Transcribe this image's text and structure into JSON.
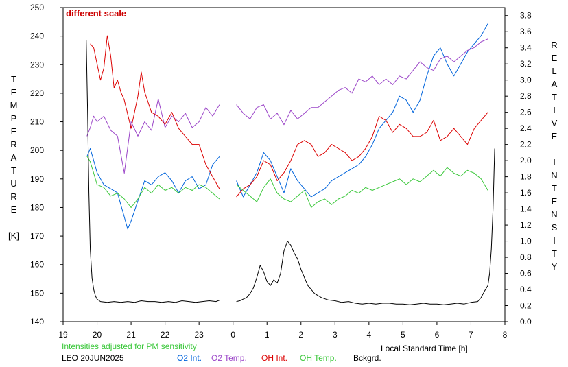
{
  "chart_data": {
    "type": "line",
    "annotation": "different scale",
    "footnote": "Intensities adjusted for PM sensitivity",
    "station": "LEO 20JUN2025",
    "xlabel": "Local Standard Time [h]",
    "ylabel_left": [
      "T",
      "E",
      "M",
      "P",
      "E",
      "R",
      "A",
      "T",
      "U",
      "R",
      "E",
      "",
      "[K]"
    ],
    "ylabel_right": [
      "R",
      "E",
      "L",
      "A",
      "T",
      "I",
      "V",
      "E",
      "",
      "I",
      "N",
      "T",
      "E",
      "N",
      "S",
      "I",
      "T",
      "Y"
    ],
    "x_axis": {
      "range": [
        19,
        32
      ],
      "tick_values": [
        19,
        20,
        21,
        22,
        23,
        24,
        25,
        26,
        27,
        28,
        29,
        30,
        31,
        32
      ],
      "tick_labels": [
        "19",
        "20",
        "21",
        "22",
        "23",
        "0",
        "1",
        "2",
        "3",
        "4",
        "5",
        "6",
        "7",
        "8"
      ]
    },
    "y_left": {
      "range": [
        140,
        250
      ],
      "tick_values": [
        140,
        150,
        160,
        170,
        180,
        190,
        200,
        210,
        220,
        230,
        240,
        250
      ],
      "tick_labels": [
        "140",
        "150",
        "160",
        "170",
        "180",
        "190",
        "200",
        "210",
        "220",
        "230",
        "240",
        "250"
      ]
    },
    "y_right": {
      "range": [
        0.0,
        3.9
      ],
      "tick_values": [
        0.0,
        0.2,
        0.4,
        0.6,
        0.8,
        1.0,
        1.2,
        1.4,
        1.6,
        1.8,
        2.0,
        2.2,
        2.4,
        2.6,
        2.8,
        3.0,
        3.2,
        3.4,
        3.6,
        3.8
      ],
      "tick_labels": [
        "0.0",
        "0.2",
        "0.4",
        "0.6",
        "0.8",
        "1.0",
        "1.2",
        "1.4",
        "1.6",
        "1.8",
        "2.0",
        "2.2",
        "2.4",
        "2.6",
        "2.8",
        "3.0",
        "3.2",
        "3.4",
        "3.6",
        "3.8"
      ]
    },
    "series": [
      {
        "name": "O2 Int.",
        "axis": "right",
        "color": "#0064dc",
        "x": [
          19.7,
          19.8,
          19.9,
          20.0,
          20.2,
          20.4,
          20.6,
          20.7,
          20.8,
          20.9,
          21.0,
          21.2,
          21.4,
          21.6,
          21.8,
          22.0,
          22.2,
          22.4,
          22.6,
          22.8,
          23.0,
          23.2,
          23.4,
          23.6
        ],
        "y": [
          2.05,
          2.15,
          2.0,
          1.85,
          1.7,
          1.65,
          1.6,
          1.45,
          1.3,
          1.15,
          1.25,
          1.5,
          1.75,
          1.7,
          1.8,
          1.85,
          1.75,
          1.6,
          1.75,
          1.8,
          1.65,
          1.7,
          1.95,
          2.05
        ]
      },
      {
        "name": "O2 Int.",
        "axis": "right",
        "color": "#0064dc",
        "x": [
          24.1,
          24.3,
          24.5,
          24.7,
          24.9,
          25.1,
          25.3,
          25.5,
          25.7,
          25.9,
          26.1,
          26.3,
          26.5,
          26.7,
          26.9,
          27.1,
          27.3,
          27.5,
          27.7,
          27.9,
          28.1,
          28.3,
          28.5,
          28.7,
          28.9,
          29.1,
          29.3,
          29.5,
          29.7,
          29.9,
          30.1,
          30.3,
          30.5,
          30.7,
          30.9,
          31.1,
          31.3,
          31.5
        ],
        "y": [
          1.75,
          1.55,
          1.7,
          1.85,
          2.1,
          2.0,
          1.8,
          1.6,
          1.9,
          1.75,
          1.65,
          1.55,
          1.6,
          1.65,
          1.75,
          1.8,
          1.85,
          1.9,
          1.95,
          2.05,
          2.2,
          2.4,
          2.5,
          2.6,
          2.8,
          2.75,
          2.6,
          2.75,
          3.05,
          3.3,
          3.4,
          3.2,
          3.05,
          3.2,
          3.35,
          3.45,
          3.55,
          3.7
        ]
      },
      {
        "name": "O2 Temp.",
        "axis": "left",
        "color": "#9b45c8",
        "x": [
          19.7,
          19.8,
          19.9,
          20.0,
          20.2,
          20.4,
          20.6,
          20.8,
          21.0,
          21.2,
          21.4,
          21.6,
          21.8,
          22.0,
          22.2,
          22.4,
          22.6,
          22.8,
          23.0,
          23.2,
          23.4,
          23.6
        ],
        "y": [
          205,
          208,
          212,
          210,
          212,
          207,
          205,
          192,
          210,
          205,
          210,
          207,
          218,
          208,
          212,
          210,
          213,
          208,
          210,
          215,
          212,
          216
        ]
      },
      {
        "name": "O2 Temp.",
        "axis": "left",
        "color": "#9b45c8",
        "x": [
          24.1,
          24.3,
          24.5,
          24.7,
          24.9,
          25.1,
          25.3,
          25.5,
          25.7,
          25.9,
          26.1,
          26.3,
          26.5,
          26.7,
          26.9,
          27.1,
          27.3,
          27.5,
          27.7,
          27.9,
          28.1,
          28.3,
          28.5,
          28.7,
          28.9,
          29.1,
          29.3,
          29.5,
          29.7,
          29.9,
          30.1,
          30.3,
          30.5,
          30.7,
          30.9,
          31.1,
          31.3,
          31.5
        ],
        "y": [
          216,
          213,
          211,
          215,
          216,
          211,
          213,
          209,
          214,
          211,
          213,
          215,
          215,
          217,
          219,
          221,
          222,
          220,
          225,
          224,
          226,
          223,
          225,
          223,
          226,
          225,
          228,
          231,
          229,
          228,
          232,
          233,
          231,
          233,
          235,
          236,
          238,
          239
        ]
      },
      {
        "name": "OH Int.",
        "axis": "right",
        "color": "#dc0000",
        "x": [
          19.8,
          19.9,
          20.0,
          20.1,
          20.2,
          20.3,
          20.4,
          20.5,
          20.6,
          20.7,
          20.8,
          21.0,
          21.2,
          21.3,
          21.4,
          21.6,
          21.8,
          22.0,
          22.2,
          22.4,
          22.6,
          22.8,
          23.0,
          23.2,
          23.4,
          23.6
        ],
        "y": [
          3.45,
          3.4,
          3.2,
          3.0,
          3.15,
          3.55,
          3.3,
          2.9,
          3.0,
          2.85,
          2.75,
          2.4,
          2.8,
          3.1,
          2.85,
          2.6,
          2.55,
          2.45,
          2.6,
          2.4,
          2.3,
          2.2,
          2.2,
          1.95,
          1.8,
          1.65
        ]
      },
      {
        "name": "OH Int.",
        "axis": "right",
        "color": "#dc0000",
        "x": [
          24.1,
          24.3,
          24.5,
          24.7,
          24.9,
          25.1,
          25.3,
          25.5,
          25.7,
          25.9,
          26.1,
          26.3,
          26.5,
          26.7,
          26.9,
          27.1,
          27.3,
          27.5,
          27.7,
          27.9,
          28.1,
          28.3,
          28.5,
          28.7,
          28.9,
          29.1,
          29.3,
          29.5,
          29.7,
          29.9,
          30.1,
          30.3,
          30.5,
          30.7,
          30.9,
          31.1,
          31.3,
          31.5
        ],
        "y": [
          1.55,
          1.65,
          1.7,
          1.8,
          2.0,
          1.95,
          1.75,
          1.85,
          2.0,
          2.2,
          2.25,
          2.2,
          2.05,
          2.1,
          2.2,
          2.15,
          2.1,
          2.0,
          2.05,
          2.15,
          2.3,
          2.55,
          2.5,
          2.35,
          2.45,
          2.4,
          2.3,
          2.3,
          2.35,
          2.5,
          2.25,
          2.3,
          2.4,
          2.3,
          2.2,
          2.4,
          2.5,
          2.6
        ]
      },
      {
        "name": "OH Temp.",
        "axis": "left",
        "color": "#3cc83c",
        "x": [
          19.7,
          19.8,
          19.9,
          20.0,
          20.2,
          20.4,
          20.6,
          20.8,
          21.0,
          21.2,
          21.4,
          21.6,
          21.8,
          22.0,
          22.2,
          22.4,
          22.6,
          22.8,
          23.0,
          23.2,
          23.4,
          23.6
        ],
        "y": [
          198,
          196,
          192,
          188,
          187,
          184,
          185,
          183,
          180,
          183,
          187,
          185,
          188,
          186,
          187,
          185,
          187,
          186,
          188,
          187,
          185,
          183
        ]
      },
      {
        "name": "OH Temp.",
        "axis": "left",
        "color": "#3cc83c",
        "x": [
          24.1,
          24.3,
          24.5,
          24.7,
          24.9,
          25.1,
          25.3,
          25.5,
          25.7,
          25.9,
          26.1,
          26.3,
          26.5,
          26.7,
          26.9,
          27.1,
          27.3,
          27.5,
          27.7,
          27.9,
          28.1,
          28.3,
          28.5,
          28.7,
          28.9,
          29.1,
          29.3,
          29.5,
          29.7,
          29.9,
          30.1,
          30.3,
          30.5,
          30.7,
          30.9,
          31.1,
          31.3,
          31.5
        ],
        "y": [
          188,
          186,
          184,
          182,
          187,
          190,
          185,
          183,
          182,
          184,
          186,
          180,
          182,
          183,
          181,
          183,
          184,
          186,
          185,
          187,
          186,
          187,
          188,
          189,
          190,
          188,
          190,
          189,
          191,
          193,
          191,
          194,
          192,
          191,
          193,
          192,
          190,
          186
        ]
      },
      {
        "name": "Bckgrd.",
        "axis": "right",
        "color": "#000000",
        "x": [
          19.68,
          19.72,
          19.76,
          19.8,
          19.85,
          19.9,
          19.95,
          20.0,
          20.1,
          20.3,
          20.5,
          20.7,
          20.9,
          21.1,
          21.3,
          21.5,
          21.7,
          21.9,
          22.1,
          22.3,
          22.5,
          22.7,
          22.9,
          23.1,
          23.3,
          23.5,
          23.62
        ],
        "y": [
          3.5,
          2.6,
          1.6,
          0.9,
          0.55,
          0.4,
          0.32,
          0.28,
          0.25,
          0.24,
          0.25,
          0.24,
          0.25,
          0.24,
          0.26,
          0.25,
          0.25,
          0.24,
          0.25,
          0.24,
          0.26,
          0.25,
          0.24,
          0.25,
          0.26,
          0.25,
          0.27
        ]
      },
      {
        "name": "Bckgrd.",
        "axis": "right",
        "color": "#000000",
        "x": [
          24.1,
          24.2,
          24.3,
          24.4,
          24.5,
          24.6,
          24.7,
          24.8,
          24.9,
          25.0,
          25.1,
          25.2,
          25.3,
          25.4,
          25.5,
          25.6,
          25.7,
          25.8,
          25.9,
          26.0,
          26.1,
          26.2,
          26.4,
          26.6,
          26.8,
          27.0,
          27.2,
          27.4,
          27.6,
          27.8,
          28.0,
          28.2,
          28.4,
          28.6,
          28.8,
          29.0,
          29.2,
          29.4,
          29.6,
          29.8,
          30.0,
          30.2,
          30.4,
          30.6,
          30.8,
          31.0,
          31.2,
          31.3,
          31.4,
          31.5,
          31.55,
          31.6,
          31.65,
          31.7
        ],
        "y": [
          0.25,
          0.26,
          0.28,
          0.3,
          0.35,
          0.42,
          0.55,
          0.7,
          0.62,
          0.5,
          0.45,
          0.52,
          0.48,
          0.6,
          0.88,
          1.0,
          0.95,
          0.85,
          0.78,
          0.65,
          0.55,
          0.45,
          0.35,
          0.3,
          0.27,
          0.26,
          0.24,
          0.25,
          0.23,
          0.22,
          0.23,
          0.22,
          0.23,
          0.23,
          0.22,
          0.22,
          0.21,
          0.22,
          0.23,
          0.22,
          0.22,
          0.21,
          0.22,
          0.23,
          0.22,
          0.24,
          0.25,
          0.3,
          0.38,
          0.45,
          0.6,
          0.9,
          1.4,
          2.15
        ]
      }
    ],
    "legend": [
      {
        "label": "O2 Int.",
        "color": "#0064dc"
      },
      {
        "label": "O2 Temp.",
        "color": "#9b45c8"
      },
      {
        "label": "OH Int.",
        "color": "#dc0000"
      },
      {
        "label": "OH Temp.",
        "color": "#3cc83c"
      },
      {
        "label": "Bckgrd.",
        "color": "#000000"
      }
    ]
  }
}
